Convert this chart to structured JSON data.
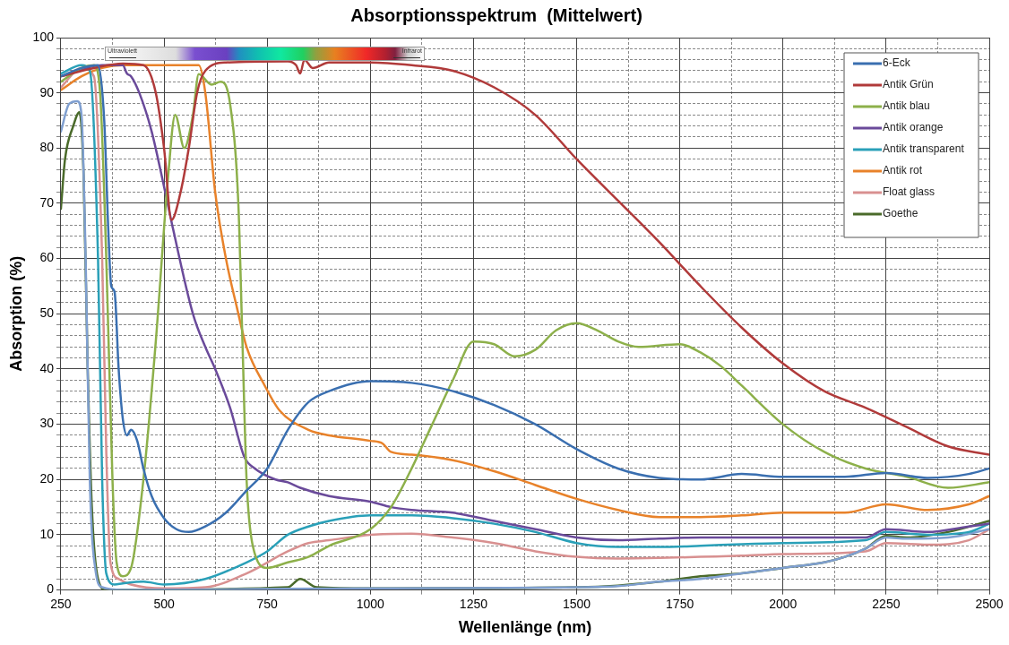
{
  "chart_data": {
    "type": "line",
    "title": "Absorptionsspektrum  (Mittelwert)",
    "xlabel": "Wellenlänge (nm)",
    "ylabel": "Absorption (%)",
    "annotations": [
      "Ultraviolett",
      "Infrarot"
    ],
    "xlim": [
      250,
      2500
    ],
    "ylim": [
      0,
      100
    ],
    "xticks": [
      250,
      {
        "value": 375,
        "label": null
      },
      500,
      {
        "value": 625,
        "label": null
      },
      750,
      {
        "value": 875,
        "label": null
      },
      1000,
      {
        "value": 1125,
        "label": null
      },
      1250,
      {
        "value": 1375,
        "label": null
      },
      1500,
      {
        "value": 1625,
        "label": null
      },
      1750,
      {
        "value": 1875,
        "label": null
      },
      2000,
      {
        "value": 2125,
        "label": null
      },
      2250,
      {
        "value": 2375,
        "label": null
      },
      2500
    ],
    "yticks": [
      0,
      {
        "value": 2,
        "label": null
      },
      {
        "value": 4,
        "label": null
      },
      {
        "value": 6,
        "label": null
      },
      {
        "value": 8,
        "label": null
      },
      10,
      {
        "value": 12,
        "label": null
      },
      {
        "value": 14,
        "label": null
      },
      {
        "value": 16,
        "label": null
      },
      {
        "value": 18,
        "label": null
      },
      20,
      {
        "value": 22,
        "label": null
      },
      {
        "value": 24,
        "label": null
      },
      {
        "value": 26,
        "label": null
      },
      {
        "value": 28,
        "label": null
      },
      30,
      {
        "value": 32,
        "label": null
      },
      {
        "value": 34,
        "label": null
      },
      {
        "value": 36,
        "label": null
      },
      {
        "value": 38,
        "label": null
      },
      40,
      {
        "value": 42,
        "label": null
      },
      {
        "value": 44,
        "label": null
      },
      {
        "value": 46,
        "label": null
      },
      {
        "value": 48,
        "label": null
      },
      50,
      {
        "value": 52,
        "label": null
      },
      {
        "value": 54,
        "label": null
      },
      {
        "value": 56,
        "label": null
      },
      {
        "value": 58,
        "label": null
      },
      60,
      {
        "value": 62,
        "label": null
      },
      {
        "value": 64,
        "label": null
      },
      {
        "value": 66,
        "label": null
      },
      {
        "value": 68,
        "label": null
      },
      70,
      {
        "value": 72,
        "label": null
      },
      {
        "value": 74,
        "label": null
      },
      {
        "value": 76,
        "label": null
      },
      {
        "value": 78,
        "label": null
      },
      80,
      {
        "value": 82,
        "label": null
      },
      {
        "value": 84,
        "label": null
      },
      {
        "value": 86,
        "label": null
      },
      {
        "value": 88,
        "label": null
      },
      90,
      {
        "value": 92,
        "label": null
      },
      {
        "value": 94,
        "label": null
      },
      {
        "value": 96,
        "label": null
      },
      {
        "value": 98,
        "label": null
      },
      100
    ],
    "grid": true,
    "legend": "top right",
    "marker": "none",
    "line_style": "solid",
    "series": [
      {
        "name": "6-Eck",
        "color": "#3a6fb0",
        "x": [
          250,
          300,
          340,
          355,
          365,
          372,
          380,
          390,
          400,
          410,
          420,
          435,
          450,
          470,
          500,
          530,
          560,
          600,
          650,
          700,
          750,
          800,
          850,
          900,
          1000,
          1100,
          1200,
          1300,
          1400,
          1500,
          1600,
          1700,
          1800,
          1900,
          2000,
          2150,
          2250,
          2350,
          2450,
          2500
        ],
        "values": [
          93,
          94.5,
          95,
          85,
          65,
          55,
          54,
          40,
          31,
          28,
          29,
          27,
          22,
          17,
          13,
          11,
          10.5,
          11.5,
          14,
          18,
          22,
          29,
          34,
          36,
          37.8,
          37.5,
          36,
          33.5,
          30,
          25.5,
          22,
          20.3,
          20,
          21,
          20.5,
          20.5,
          21.2,
          20.3,
          21,
          22
        ]
      },
      {
        "name": "Antik Grün",
        "color": "#b03a3a",
        "x": [
          250,
          330,
          400,
          450,
          480,
          500,
          518,
          540,
          560,
          580,
          600,
          650,
          800,
          820,
          830,
          840,
          860,
          900,
          1000,
          1100,
          1200,
          1300,
          1400,
          1500,
          1600,
          1700,
          1800,
          1900,
          2000,
          2100,
          2200,
          2300,
          2400,
          2500
        ],
        "values": [
          93,
          94.5,
          95.3,
          95,
          90,
          80,
          67,
          72,
          80,
          90,
          94,
          95.5,
          95.7,
          95,
          93.5,
          96,
          94.5,
          95.5,
          95.5,
          95,
          94,
          91,
          86,
          78,
          70.5,
          63,
          55,
          47.5,
          41,
          36,
          33,
          29.5,
          26,
          24.5
        ]
      },
      {
        "name": "Antik blau",
        "color": "#8db04a",
        "x": [
          250,
          300,
          330,
          345,
          360,
          375,
          385,
          400,
          420,
          450,
          480,
          510,
          527,
          549,
          570,
          584,
          615,
          637,
          660,
          680,
          690,
          700,
          715,
          750,
          800,
          850,
          900,
          1000,
          1050,
          1100,
          1150,
          1200,
          1250,
          1300,
          1350,
          1400,
          1450,
          1500,
          1550,
          1600,
          1650,
          1750,
          1800,
          1850,
          1900,
          2000,
          2100,
          2200,
          2300,
          2400,
          2500
        ],
        "values": [
          92,
          94.5,
          95,
          90,
          60,
          20,
          5,
          2.5,
          4,
          20,
          45,
          75,
          86,
          80,
          86,
          93.4,
          91.5,
          92,
          88,
          70,
          45,
          20,
          8,
          4,
          5,
          6,
          8,
          11,
          15,
          22,
          30,
          38,
          45,
          44.5,
          42.3,
          43.5,
          47,
          48.3,
          47,
          45,
          44,
          44.5,
          43,
          40.5,
          37,
          30,
          25,
          22,
          20.5,
          18.5,
          19.5
        ]
      },
      {
        "name": "Antik orange",
        "color": "#6a4a9a",
        "x": [
          250,
          350,
          400,
          410,
          420,
          440,
          470,
          500,
          520,
          570,
          600,
          624,
          660,
          695,
          720,
          770,
          800,
          830,
          900,
          1000,
          1050,
          1100,
          1200,
          1300,
          1400,
          1500,
          1600,
          1700,
          1800,
          1900,
          2000,
          2200,
          2250,
          2350,
          2450,
          2500
        ],
        "values": [
          93,
          95,
          95,
          93.5,
          93,
          90,
          83,
          73,
          66,
          50,
          44,
          40,
          33,
          24,
          22,
          20,
          19.5,
          18.5,
          17,
          16,
          15,
          14.5,
          14,
          12.5,
          11,
          9.5,
          9,
          9.3,
          9.5,
          9.5,
          9.5,
          9.5,
          11,
          10.5,
          11.5,
          12
        ]
      },
      {
        "name": "Antik transparent",
        "color": "#2aa0b8",
        "x": [
          250,
          300,
          320,
          340,
          350,
          360,
          380,
          400,
          450,
          500,
          600,
          700,
          750,
          800,
          850,
          900,
          1000,
          1100,
          1200,
          1300,
          1400,
          1500,
          1600,
          1700,
          1800,
          1900,
          2000,
          2200,
          2250,
          2350,
          2450,
          2500
        ],
        "values": [
          93.5,
          95,
          94,
          60,
          20,
          3,
          1,
          1.2,
          1.5,
          1,
          2,
          5,
          7,
          10,
          11.5,
          12.5,
          13.5,
          13.5,
          13,
          12,
          10.5,
          8.5,
          7.8,
          7.8,
          8,
          8.3,
          8.5,
          9,
          10.5,
          10,
          10.5,
          12
        ]
      },
      {
        "name": "Antik rot",
        "color": "#e8822a",
        "x": [
          250,
          300,
          350,
          400,
          500,
          584,
          600,
          624,
          650,
          677,
          700,
          744,
          780,
          850,
          900,
          1000,
          1030,
          1050,
          1100,
          1200,
          1300,
          1400,
          1500,
          1600,
          1700,
          1800,
          1900,
          2000,
          2150,
          2250,
          2350,
          2450,
          2500
        ],
        "values": [
          90.5,
          93,
          94.5,
          95,
          95,
          95,
          90,
          72,
          60,
          51,
          44,
          37,
          32.5,
          29,
          28,
          27,
          26.5,
          25,
          24.5,
          23.5,
          21.5,
          19,
          16.5,
          14.5,
          13.2,
          13.2,
          13.5,
          14,
          14,
          15.5,
          14.5,
          15.5,
          17
        ]
      },
      {
        "color": "#7f9fd0",
        "x": [
          250,
          270,
          290,
          300,
          310,
          320,
          335,
          350,
          400,
          800,
          1000,
          1500,
          1600,
          1700,
          1800,
          1900,
          2000,
          2100,
          2150,
          2200,
          2250,
          2300,
          2400,
          2500
        ],
        "values": [
          83,
          88,
          88.5,
          86,
          60,
          20,
          3,
          0.5,
          0,
          0.2,
          0.3,
          0.5,
          0.7,
          1.5,
          2,
          3,
          4,
          5,
          6,
          7.5,
          9.5,
          9.3,
          9.5,
          11
        ]
      },
      {
        "name": "Float glass",
        "color": "#d89090",
        "x": [
          250,
          300,
          330,
          350,
          360,
          370,
          390,
          420,
          500,
          600,
          700,
          800,
          850,
          900,
          1000,
          1100,
          1200,
          1300,
          1400,
          1500,
          1600,
          1700,
          1800,
          1900,
          2000,
          2200,
          2250,
          2350,
          2450,
          2500
        ],
        "values": [
          91,
          94.5,
          93,
          60,
          25,
          5,
          2,
          1,
          0.3,
          0.5,
          3,
          7,
          8.5,
          9,
          10,
          10.2,
          9.5,
          8.5,
          7,
          6,
          5.7,
          5.8,
          6,
          6.2,
          6.5,
          7,
          8.5,
          8.2,
          9,
          11
        ]
      },
      {
        "name": "Goethe",
        "color": "#4a6a2a",
        "x": [
          250,
          260,
          280,
          295,
          305,
          315,
          325,
          340,
          360,
          800,
          830,
          870,
          1000,
          1500,
          1600,
          1700,
          1800,
          1900,
          2000,
          2100,
          2150,
          2200,
          2250,
          2300,
          2400,
          2500
        ],
        "values": [
          69,
          78,
          84,
          86.5,
          75,
          40,
          15,
          2,
          0,
          0.5,
          2,
          0.5,
          0.3,
          0.5,
          0.8,
          1.5,
          2.5,
          3,
          4,
          5,
          6,
          7.5,
          9.8,
          9.5,
          10.5,
          12.5
        ]
      }
    ]
  }
}
